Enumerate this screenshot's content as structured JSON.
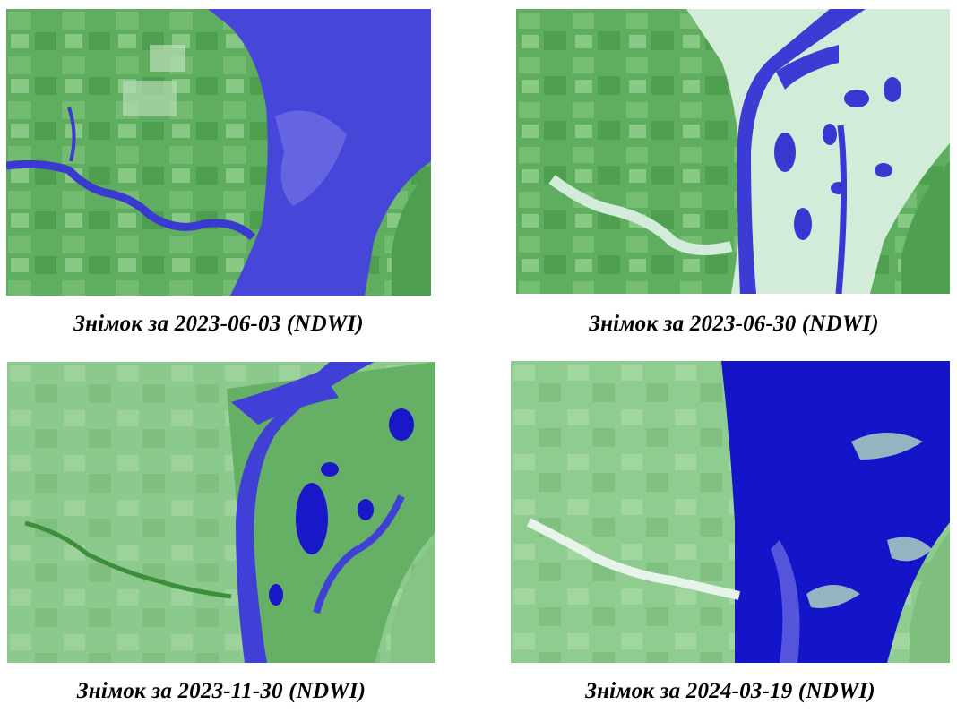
{
  "figure": {
    "panels": [
      {
        "caption": "Знімок за 2023-06-03 (NDWI)"
      },
      {
        "caption": "Знімок за 2023-06-30 (NDWI)"
      },
      {
        "caption": "Знімок за 2023-11-30 (NDWI)"
      },
      {
        "caption": "Знімок за 2024-03-19 (NDWI)"
      }
    ],
    "colors": {
      "water": "#3f3fd6",
      "deep_water": "#1414c8",
      "vegetation": "#5fae5f",
      "vegetation_light": "#8fcf8f",
      "wet_soil": "#cfe8d6"
    }
  }
}
